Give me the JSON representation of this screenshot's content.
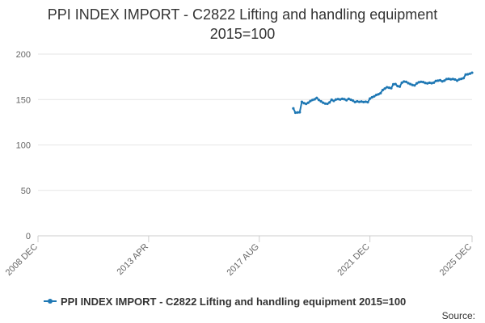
{
  "chart_data": {
    "type": "line",
    "title_lines": [
      "PPI INDEX IMPORT - C2822 Lifting and handling equipment",
      "2015=100"
    ],
    "xlabel": "",
    "ylabel": "",
    "x_ticks": [
      "2008 DEC",
      "2013 APR",
      "2017 AUG",
      "2021 DEC",
      "2025 DEC"
    ],
    "ylim": [
      0,
      200
    ],
    "y_ticks": [
      0,
      50,
      100,
      150,
      200
    ],
    "grid": "horizontal",
    "legend_position": "bottom",
    "colors": {
      "series": "#1f78b4",
      "grid": "#e6e6e6",
      "axis": "#cccccc"
    },
    "series": [
      {
        "name": "PPI INDEX IMPORT - C2822 Lifting and handling equipment 2015=100",
        "points": [
          [
            "2018-12",
            140.2
          ],
          [
            "2019-01",
            135.5
          ],
          [
            "2019-02",
            135.8
          ],
          [
            "2019-03",
            136.0
          ],
          [
            "2019-04",
            147.5
          ],
          [
            "2019-05",
            146.0
          ],
          [
            "2019-06",
            145.2
          ],
          [
            "2019-07",
            146.5
          ],
          [
            "2019-08",
            148.3
          ],
          [
            "2019-09",
            149.5
          ],
          [
            "2019-10",
            150.2
          ],
          [
            "2019-11",
            151.8
          ],
          [
            "2019-12",
            149.5
          ],
          [
            "2020-01",
            148.0
          ],
          [
            "2020-02",
            146.5
          ],
          [
            "2020-03",
            145.5
          ],
          [
            "2020-04",
            145.3
          ],
          [
            "2020-05",
            146.8
          ],
          [
            "2020-06",
            149.8
          ],
          [
            "2020-07",
            148.5
          ],
          [
            "2020-08",
            150.0
          ],
          [
            "2020-09",
            150.5
          ],
          [
            "2020-10",
            150.0
          ],
          [
            "2020-11",
            150.8
          ],
          [
            "2020-12",
            150.3
          ],
          [
            "2021-01",
            149.2
          ],
          [
            "2021-02",
            150.8
          ],
          [
            "2021-03",
            149.8
          ],
          [
            "2021-04",
            148.8
          ],
          [
            "2021-05",
            147.2
          ],
          [
            "2021-06",
            148.0
          ],
          [
            "2021-07",
            147.4
          ],
          [
            "2021-08",
            147.8
          ],
          [
            "2021-09",
            147.2
          ],
          [
            "2021-10",
            147.6
          ],
          [
            "2021-11",
            147.0
          ],
          [
            "2021-12",
            151.0
          ],
          [
            "2022-01",
            152.5
          ],
          [
            "2022-02",
            153.5
          ],
          [
            "2022-03",
            155.0
          ],
          [
            "2022-04",
            155.8
          ],
          [
            "2022-05",
            157.0
          ],
          [
            "2022-06",
            160.5
          ],
          [
            "2022-07",
            162.0
          ],
          [
            "2022-08",
            163.5
          ],
          [
            "2022-09",
            163.0
          ],
          [
            "2022-10",
            162.5
          ],
          [
            "2022-11",
            166.8
          ],
          [
            "2022-12",
            167.0
          ],
          [
            "2023-01",
            164.8
          ],
          [
            "2023-02",
            164.2
          ],
          [
            "2023-03",
            168.5
          ],
          [
            "2023-04",
            169.8
          ],
          [
            "2023-05",
            169.5
          ],
          [
            "2023-06",
            168.0
          ],
          [
            "2023-07",
            167.0
          ],
          [
            "2023-08",
            166.0
          ],
          [
            "2023-09",
            165.5
          ],
          [
            "2023-10",
            167.8
          ],
          [
            "2023-11",
            169.0
          ],
          [
            "2023-12",
            169.5
          ],
          [
            "2024-01",
            169.2
          ],
          [
            "2024-02",
            168.2
          ],
          [
            "2024-03",
            167.8
          ],
          [
            "2024-04",
            168.5
          ],
          [
            "2024-05",
            168.0
          ],
          [
            "2024-06",
            168.6
          ],
          [
            "2024-07",
            170.5
          ],
          [
            "2024-08",
            170.8
          ],
          [
            "2024-09",
            171.2
          ],
          [
            "2024-10",
            170.0
          ],
          [
            "2024-11",
            170.8
          ],
          [
            "2024-12",
            172.5
          ],
          [
            "2025-01",
            172.8
          ],
          [
            "2025-02",
            172.2
          ],
          [
            "2025-03",
            172.6
          ],
          [
            "2025-04",
            172.0
          ],
          [
            "2025-05",
            170.8
          ],
          [
            "2025-06",
            172.2
          ],
          [
            "2025-07",
            172.8
          ],
          [
            "2025-08",
            173.5
          ],
          [
            "2025-09",
            177.5
          ],
          [
            "2025-10",
            177.8
          ],
          [
            "2025-11",
            178.5
          ],
          [
            "2025-12",
            179.5
          ]
        ]
      }
    ]
  },
  "source_label": "Source:"
}
